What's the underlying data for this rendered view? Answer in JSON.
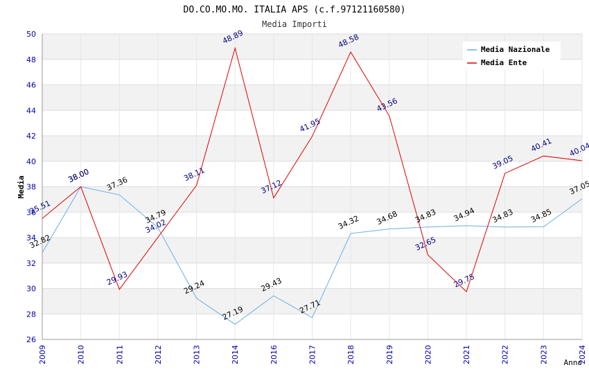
{
  "chart_data": {
    "type": "line",
    "title": "DO.CO.MO.MO. ITALIA APS (c.f.97121160580)",
    "subtitle": "Media Importi",
    "xlabel": "Anno",
    "ylabel": "Media",
    "ylim": [
      26,
      50
    ],
    "yticks": [
      26,
      28,
      30,
      32,
      34,
      36,
      38,
      40,
      42,
      44,
      46,
      48,
      50
    ],
    "categories": [
      "2009",
      "2010",
      "2011",
      "2012",
      "2013",
      "2014",
      "2016",
      "2017",
      "2018",
      "2019",
      "2020",
      "2021",
      "2022",
      "2023",
      "2024"
    ],
    "legend_position": "top-right",
    "grid": true,
    "series": [
      {
        "name": "Media Nazionale",
        "color": "#6aaee8",
        "values": [
          32.82,
          38.0,
          37.36,
          34.79,
          29.24,
          27.19,
          29.43,
          27.71,
          34.32,
          34.68,
          34.83,
          34.94,
          34.83,
          34.85,
          37.05
        ],
        "labels": [
          "32.82",
          "38.00",
          "37.36",
          "34.79",
          "29.24",
          "27.19",
          "29.43",
          "27.71",
          "34.32",
          "34.68",
          "34.83",
          "34.94",
          "34.83",
          "34.85",
          "37.05"
        ]
      },
      {
        "name": "Media Ente",
        "color": "#e00000",
        "values": [
          35.51,
          38.0,
          29.93,
          34.02,
          38.11,
          48.89,
          37.12,
          41.95,
          48.58,
          43.56,
          32.65,
          29.75,
          39.05,
          40.41,
          40.04
        ],
        "labels": [
          "35.51",
          "38.00",
          "29.93",
          "34.02",
          "38.11",
          "48.89",
          "37.12",
          "41.95",
          "48.58",
          "43.56",
          "32.65",
          "29.75",
          "39.05",
          "40.41",
          "40.04"
        ]
      }
    ]
  }
}
